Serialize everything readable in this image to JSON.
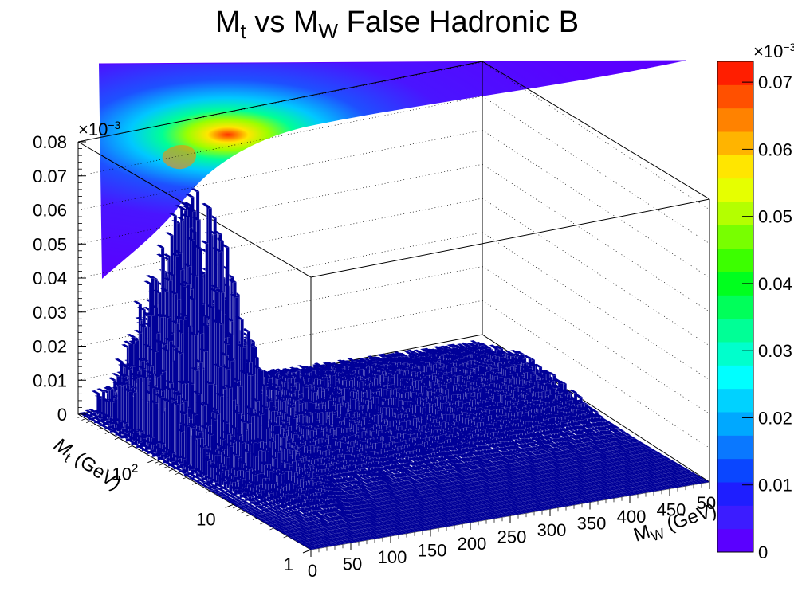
{
  "chart_data": {
    "type": "heatmap",
    "render_style": "3d-lego-with-top-projection",
    "title": "M_t vs M_W False Hadronic B",
    "title_parts": {
      "m": "M",
      "t": "t",
      "vs": "vs",
      "w": "W",
      "rest": "False Hadronic B"
    },
    "xlabel": "M_W (GeV)",
    "xlabel_parts": {
      "m": "M",
      "w": "W",
      "rest": "(GeV)"
    },
    "ylabel": "M_t (GeV)",
    "ylabel_parts": {
      "m": "M",
      "t": "t",
      "rest": "(GeV)"
    },
    "x_ticks": [
      "0",
      "50",
      "100",
      "150",
      "200",
      "250",
      "300",
      "350",
      "400",
      "450",
      "500"
    ],
    "xlim": [
      0,
      500
    ],
    "y_ticks": [
      "1",
      "10",
      "10"
    ],
    "y_exponent": "2",
    "ylim": [
      1,
      1000
    ],
    "y_scale": "log",
    "z_ticks": [
      "0",
      "0.01",
      "0.02",
      "0.03",
      "0.04",
      "0.05",
      "0.06",
      "0.07",
      "0.08"
    ],
    "z_multiplier_base": "×10",
    "z_multiplier_exp": "−3",
    "zlim": [
      0,
      0.08
    ],
    "colorbar_ticks": [
      "0",
      "0.01",
      "0.02",
      "0.03",
      "0.04",
      "0.05",
      "0.06",
      "0.07"
    ],
    "colorbar_multiplier": "×10",
    "colorbar_multiplier_exp": "−3",
    "peak": {
      "x": 75,
      "y": 170,
      "z": 0.074
    },
    "colors": {
      "palette": [
        "#5a00ff",
        "#3c1cff",
        "#1e1eff",
        "#0a46ff",
        "#0a78ff",
        "#00a8ff",
        "#00d2ff",
        "#00ffff",
        "#00ffcc",
        "#00ff96",
        "#00ff5a",
        "#00ff1e",
        "#3cff00",
        "#78ff00",
        "#b4ff00",
        "#e6ff00",
        "#ffe600",
        "#ffb400",
        "#ff8200",
        "#ff5000",
        "#ff1e00"
      ],
      "lego_fill": "#000099",
      "lego_edge": "#ffffff"
    }
  }
}
